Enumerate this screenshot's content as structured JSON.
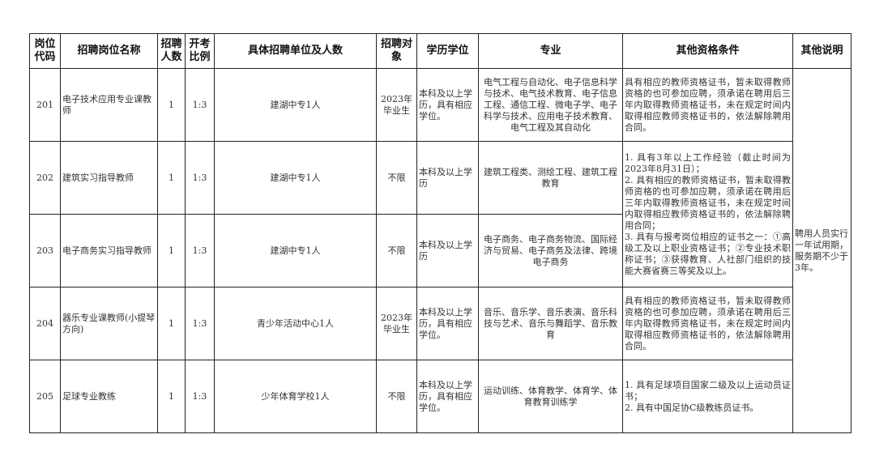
{
  "headers": [
    "岗位代码",
    "招聘岗位名称",
    "招聘人数",
    "开考比例",
    "具体招聘单位及人数",
    "招聘对象",
    "学历学位",
    "专业",
    "其他资格条件",
    "其他说明"
  ],
  "rows": [
    {
      "code": "201",
      "name": "电子技术应用专业课教师",
      "count": "1",
      "ratio": "1:3",
      "unit": "建湖中专1人",
      "target": "2023年毕业生",
      "edu": "本科及以上学历，具有相应学位。",
      "major": "电气工程与自动化、电子信息科学与技术、电气技术教育、电子信息工程、通信工程、微电子学、电子科学与技术、应用电子技术教育、电气工程及其自动化",
      "qual": "具有相应的教师资格证书，暂未取得教师资格的也可参加应聘，须承诺在聘用后三年内取得教师资格证书，未在规定时间内取得相应教师资格证书的，依法解除聘用合同。"
    },
    {
      "code": "202",
      "name": "建筑实习指导教师",
      "count": "1",
      "ratio": "1:3",
      "unit": "建湖中专1人",
      "target": "不限",
      "edu": "本科及以上学历",
      "major": "建筑工程类、测绘工程、建筑工程教育",
      "qual": "1. 具有3年以上工作经验（截止时间为2023年8月31日）；\n2. 具有相应的教师资格证书，暂未取得教师资格的也可参加应聘，须承诺在聘用后三年内取得教师资格证书，未在规定时间内取得相应教师资格证书的，依法解除聘用合同；\n3. 具有与报考岗位相应的证书之一：①高级工及以上职业资格证书；②专业技术职称证书；③获得教育、人社部门组织的技能大赛省赛三等奖及以上。"
    },
    {
      "code": "203",
      "name": "电子商务实习指导教师",
      "count": "1",
      "ratio": "1:3",
      "unit": "建湖中专1人",
      "target": "不限",
      "edu": "本科及以上学历",
      "major": "电子商务、电子商务物流、国际经济与贸易、电子商务及法律、跨境电子商务"
    },
    {
      "code": "204",
      "name": "器乐专业课教师(小提琴方向)",
      "count": "1",
      "ratio": "1:3",
      "unit": "青少年活动中心1人",
      "target": "2023年毕业生",
      "edu": "本科及以上学历，具有相应学位。",
      "major": "音乐、音乐学、音乐表演、音乐科技与艺术、音乐与舞蹈学、音乐教育",
      "qual": "具有相应的教师资格证书，暂未取得教师资格的也可参加应聘，须承诺在聘用后三年内取得教师资格证书，未在规定时间内取得相应教师资格证书的，依法解除聘用合同。"
    },
    {
      "code": "205",
      "name": "足球专业教练",
      "count": "1",
      "ratio": "1:3",
      "unit": "少年体育学校1人",
      "target": "不限",
      "edu": "本科及以上学历，具有相应学位。",
      "major": "运动训练、体育教学、体育学、体育教育训练学",
      "qual": "1. 具有足球项目国家二级及以上运动员证书；\n2. 具有中国足协C级教练员证书。"
    }
  ],
  "note": "聘用人员实行一年试用期，服务期不少于3年。"
}
